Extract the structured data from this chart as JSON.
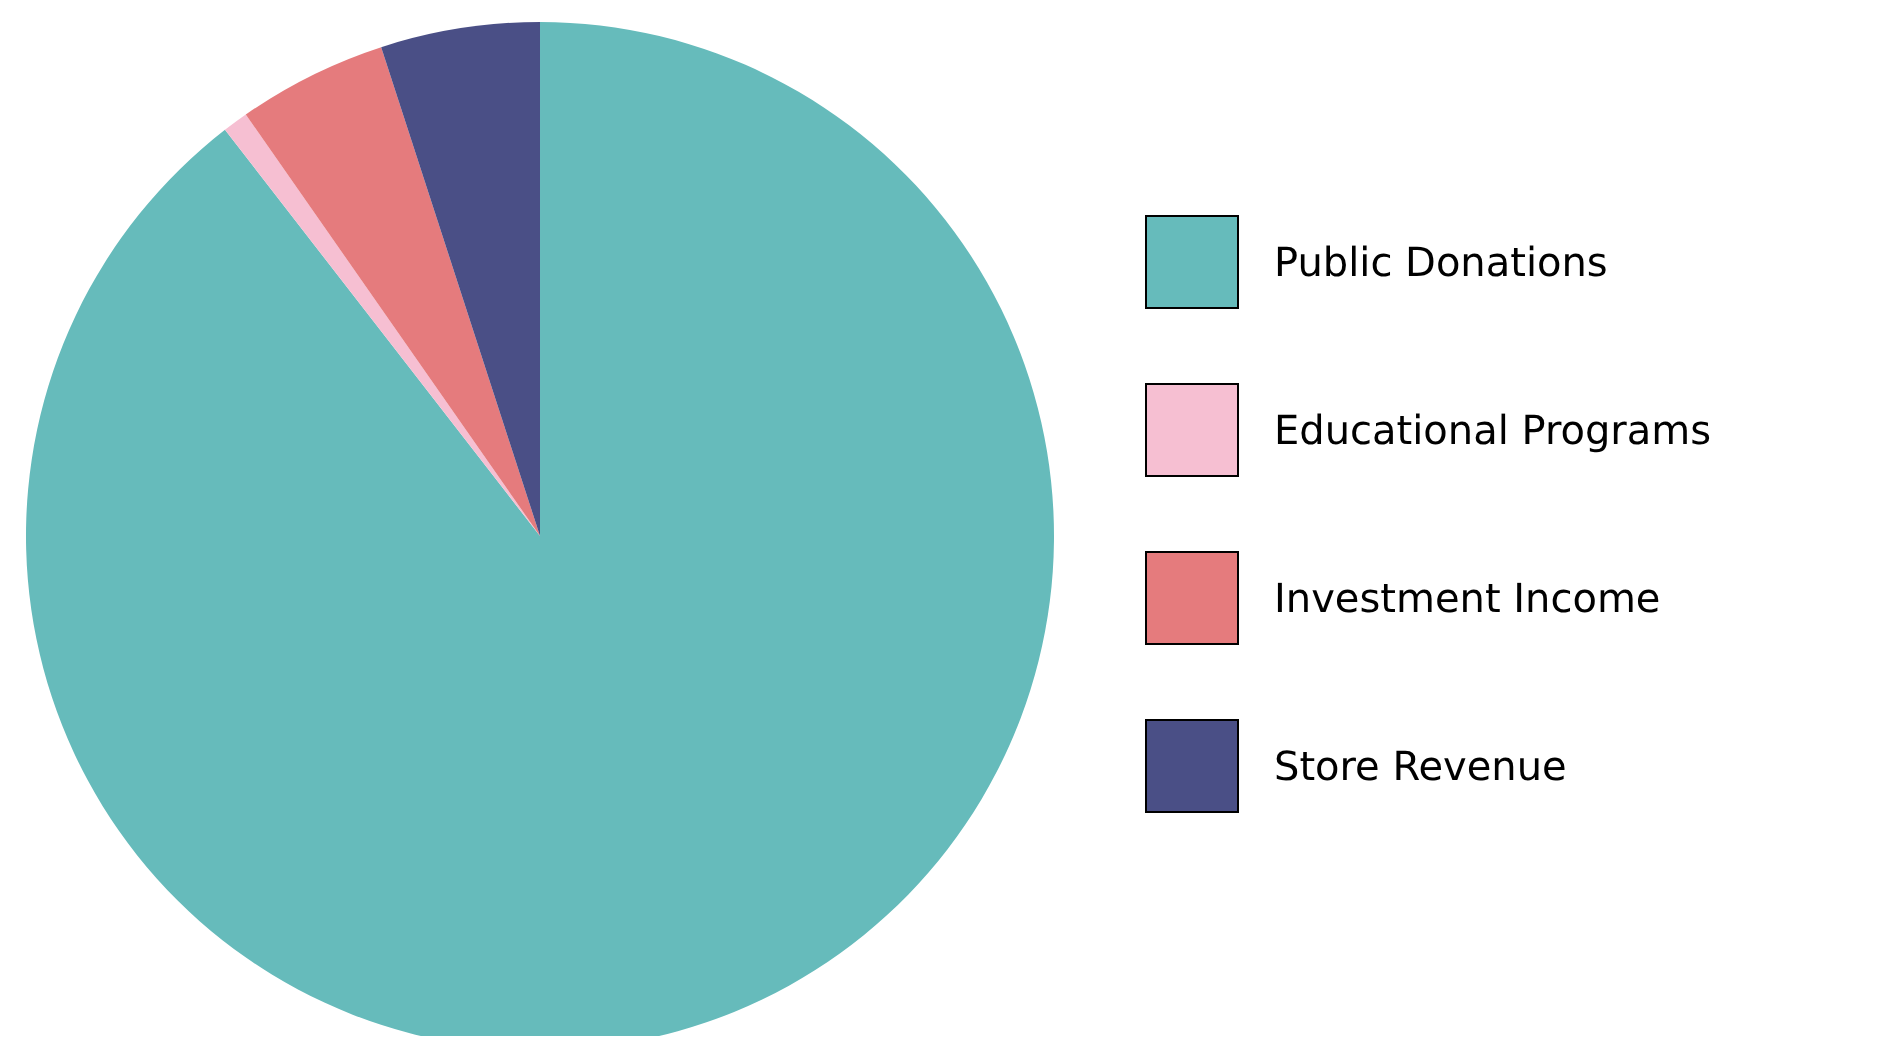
{
  "chart_data": {
    "type": "pie",
    "categories": [
      "Public Donations",
      "Educational Programs",
      "Investment Income",
      "Store Revenue"
    ],
    "values": [
      89.5,
      0.8,
      4.7,
      5.0
    ],
    "colors": [
      "#66bbbb",
      "#f6bfd2",
      "#e57b7d",
      "#4a4f86"
    ],
    "legend": "right"
  }
}
